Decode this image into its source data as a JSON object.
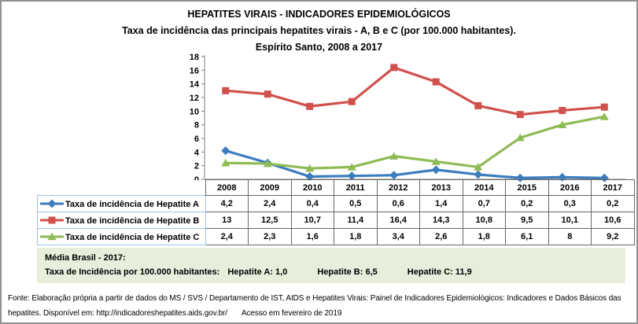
{
  "chart_data": {
    "type": "line",
    "title": "HEPATITES VIRAIS - INDICADORES EPIDEMIOLÓGICOS",
    "subtitle": "Taxa de incidência das principais hepatites virais - A, B e C (por 100.000 habitantes).",
    "subtitle2": "Espírito Santo, 2008 a 2017",
    "categories": [
      "2008",
      "2009",
      "2010",
      "2011",
      "2012",
      "2013",
      "2014",
      "2015",
      "2016",
      "2017"
    ],
    "series": [
      {
        "name": "Taxa de incidência de Hepatite A",
        "marker": "diamond",
        "color": "#3c7dbe",
        "values": [
          4.2,
          2.4,
          0.4,
          0.5,
          0.6,
          1.4,
          0.7,
          0.2,
          0.3,
          0.2
        ],
        "display": [
          "4,2",
          "2,4",
          "0,4",
          "0,5",
          "0,6",
          "1,4",
          "0,7",
          "0,2",
          "0,3",
          "0,2"
        ]
      },
      {
        "name": "Taxa de incidência de Hepatite B",
        "marker": "square",
        "color": "#d0504c",
        "values": [
          13,
          12.5,
          10.7,
          11.4,
          16.4,
          14.3,
          10.8,
          9.5,
          10.1,
          10.6
        ],
        "display": [
          "13",
          "12,5",
          "10,7",
          "11,4",
          "16,4",
          "14,3",
          "10,8",
          "9,5",
          "10,1",
          "10,6"
        ]
      },
      {
        "name": "Taxa de incidência de Hepatite C",
        "marker": "triangle",
        "color": "#8fbb55",
        "values": [
          2.4,
          2.3,
          1.6,
          1.8,
          3.4,
          2.6,
          1.8,
          6.1,
          8,
          9.2
        ],
        "display": [
          "2,4",
          "2,3",
          "1,6",
          "1,8",
          "3,4",
          "2,6",
          "1,8",
          "6,1",
          "8",
          "9,2"
        ]
      }
    ],
    "xlabel": "",
    "ylabel": "",
    "ylim": [
      0,
      18
    ],
    "ytick_step": 2,
    "grid": false,
    "legend_position": "data-table-left",
    "decimal_separator": ","
  },
  "media_brasil": {
    "title": "Média Brasil  - 2017:",
    "prefix": "Taxa de Incidência  por 100.000 habitantes:",
    "items": [
      "Hepatite A: 1,0",
      "Hepatite B: 6,5",
      "Hepatite C: 11,9"
    ]
  },
  "footer": {
    "source": "Fonte: Elaboração própria a partir de dados do MS / SVS / Departamento de IST, AIDS e Hepatites Virais: Painel de Indicadores Epidemiológicos: Indicadores e Dados Básicos das hepatites. Disponível em: http://indicadoreshepatites.aids.gov.br/",
    "access": "Acesso em fevereiro de 2019"
  },
  "colors": {
    "axis": "#7f7f7f",
    "table_border": "#666666",
    "legend_border": "#9dc3e6",
    "media_background": "#e7eedb",
    "frame_border": "#919191"
  }
}
